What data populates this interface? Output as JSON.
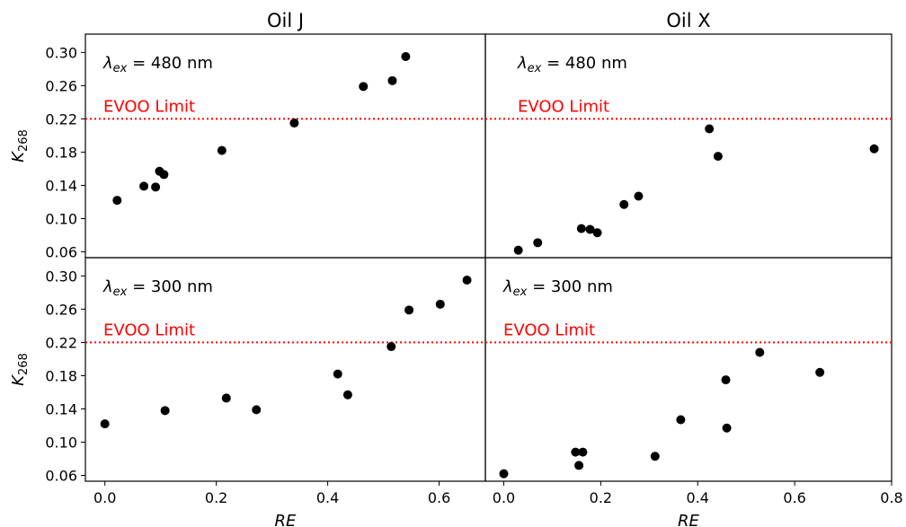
{
  "chart_data": [
    {
      "type": "scatter",
      "title": "Oil J",
      "annotation": {
        "lambda_symbol": "λ",
        "lambda_sub": "ex",
        "text": " = 480 nm"
      },
      "reference_line": {
        "y": 0.22,
        "label": "EVOO Limit",
        "color": "#ff0000",
        "style": "dotted"
      },
      "ylabel_base": "K",
      "ylabel_sub": "268",
      "xlabel": "",
      "xlim": [
        -0.035,
        0.683
      ],
      "ylim": [
        0.053,
        0.322
      ],
      "yticks": [
        "0.06",
        "0.10",
        "0.14",
        "0.18",
        "0.22",
        "0.26",
        "0.30"
      ],
      "ytick_values": [
        0.06,
        0.1,
        0.14,
        0.18,
        0.22,
        0.26,
        0.3
      ],
      "xticks": [],
      "points": [
        {
          "x": 0.022,
          "y": 0.122
        },
        {
          "x": 0.07,
          "y": 0.139
        },
        {
          "x": 0.091,
          "y": 0.138
        },
        {
          "x": 0.098,
          "y": 0.157
        },
        {
          "x": 0.106,
          "y": 0.153
        },
        {
          "x": 0.21,
          "y": 0.182
        },
        {
          "x": 0.34,
          "y": 0.215
        },
        {
          "x": 0.464,
          "y": 0.259
        },
        {
          "x": 0.516,
          "y": 0.266
        },
        {
          "x": 0.54,
          "y": 0.295
        }
      ]
    },
    {
      "type": "scatter",
      "title": "Oil X",
      "annotation": {
        "lambda_symbol": "λ",
        "lambda_sub": "ex",
        "text": " = 480 nm"
      },
      "reference_line": {
        "y": 0.22,
        "label": "EVOO Limit",
        "color": "#ff0000",
        "style": "dotted"
      },
      "ylabel_base": "",
      "ylabel_sub": "",
      "xlabel": "",
      "xlim": [
        -0.038,
        0.8
      ],
      "ylim": [
        0.053,
        0.322
      ],
      "yticks": [],
      "xticks": [],
      "points": [
        {
          "x": 0.03,
          "y": 0.062
        },
        {
          "x": 0.07,
          "y": 0.071
        },
        {
          "x": 0.16,
          "y": 0.088
        },
        {
          "x": 0.178,
          "y": 0.087
        },
        {
          "x": 0.193,
          "y": 0.083
        },
        {
          "x": 0.248,
          "y": 0.117
        },
        {
          "x": 0.278,
          "y": 0.127
        },
        {
          "x": 0.424,
          "y": 0.208
        },
        {
          "x": 0.442,
          "y": 0.175
        },
        {
          "x": 0.764,
          "y": 0.184
        }
      ]
    },
    {
      "type": "scatter",
      "title": "",
      "annotation": {
        "lambda_symbol": "λ",
        "lambda_sub": "ex",
        "text": " = 300 nm"
      },
      "reference_line": {
        "y": 0.22,
        "label": "EVOO Limit",
        "color": "#ff0000",
        "style": "dotted"
      },
      "ylabel_base": "K",
      "ylabel_sub": "268",
      "xlabel": "RE",
      "xlim": [
        -0.035,
        0.683
      ],
      "ylim": [
        0.053,
        0.322
      ],
      "yticks": [
        "0.06",
        "0.10",
        "0.14",
        "0.18",
        "0.22",
        "0.26",
        "0.30"
      ],
      "ytick_values": [
        0.06,
        0.1,
        0.14,
        0.18,
        0.22,
        0.26,
        0.3
      ],
      "xticks": [
        "0.0",
        "0.2",
        "0.4",
        "0.6"
      ],
      "xtick_values": [
        0.0,
        0.2,
        0.4,
        0.6
      ],
      "points": [
        {
          "x": 0.0,
          "y": 0.122
        },
        {
          "x": 0.108,
          "y": 0.138
        },
        {
          "x": 0.218,
          "y": 0.153
        },
        {
          "x": 0.272,
          "y": 0.139
        },
        {
          "x": 0.418,
          "y": 0.182
        },
        {
          "x": 0.436,
          "y": 0.157
        },
        {
          "x": 0.514,
          "y": 0.215
        },
        {
          "x": 0.546,
          "y": 0.259
        },
        {
          "x": 0.602,
          "y": 0.266
        },
        {
          "x": 0.65,
          "y": 0.295
        }
      ]
    },
    {
      "type": "scatter",
      "title": "",
      "annotation": {
        "lambda_symbol": "λ",
        "lambda_sub": "ex",
        "text": " = 300 nm"
      },
      "reference_line": {
        "y": 0.22,
        "label": "EVOO Limit",
        "color": "#ff0000",
        "style": "dotted"
      },
      "ylabel_base": "",
      "ylabel_sub": "",
      "xlabel": "RE",
      "xlim": [
        -0.038,
        0.8
      ],
      "ylim": [
        0.053,
        0.322
      ],
      "yticks": [],
      "xticks": [
        "0.0",
        "0.2",
        "0.4",
        "0.6",
        "0.8"
      ],
      "xtick_values": [
        0.0,
        0.2,
        0.4,
        0.6,
        0.8
      ],
      "points": [
        {
          "x": 0.0,
          "y": 0.062
        },
        {
          "x": 0.148,
          "y": 0.088
        },
        {
          "x": 0.155,
          "y": 0.072
        },
        {
          "x": 0.163,
          "y": 0.088
        },
        {
          "x": 0.312,
          "y": 0.083
        },
        {
          "x": 0.365,
          "y": 0.127
        },
        {
          "x": 0.458,
          "y": 0.175
        },
        {
          "x": 0.46,
          "y": 0.117
        },
        {
          "x": 0.528,
          "y": 0.208
        },
        {
          "x": 0.652,
          "y": 0.184
        }
      ]
    }
  ]
}
